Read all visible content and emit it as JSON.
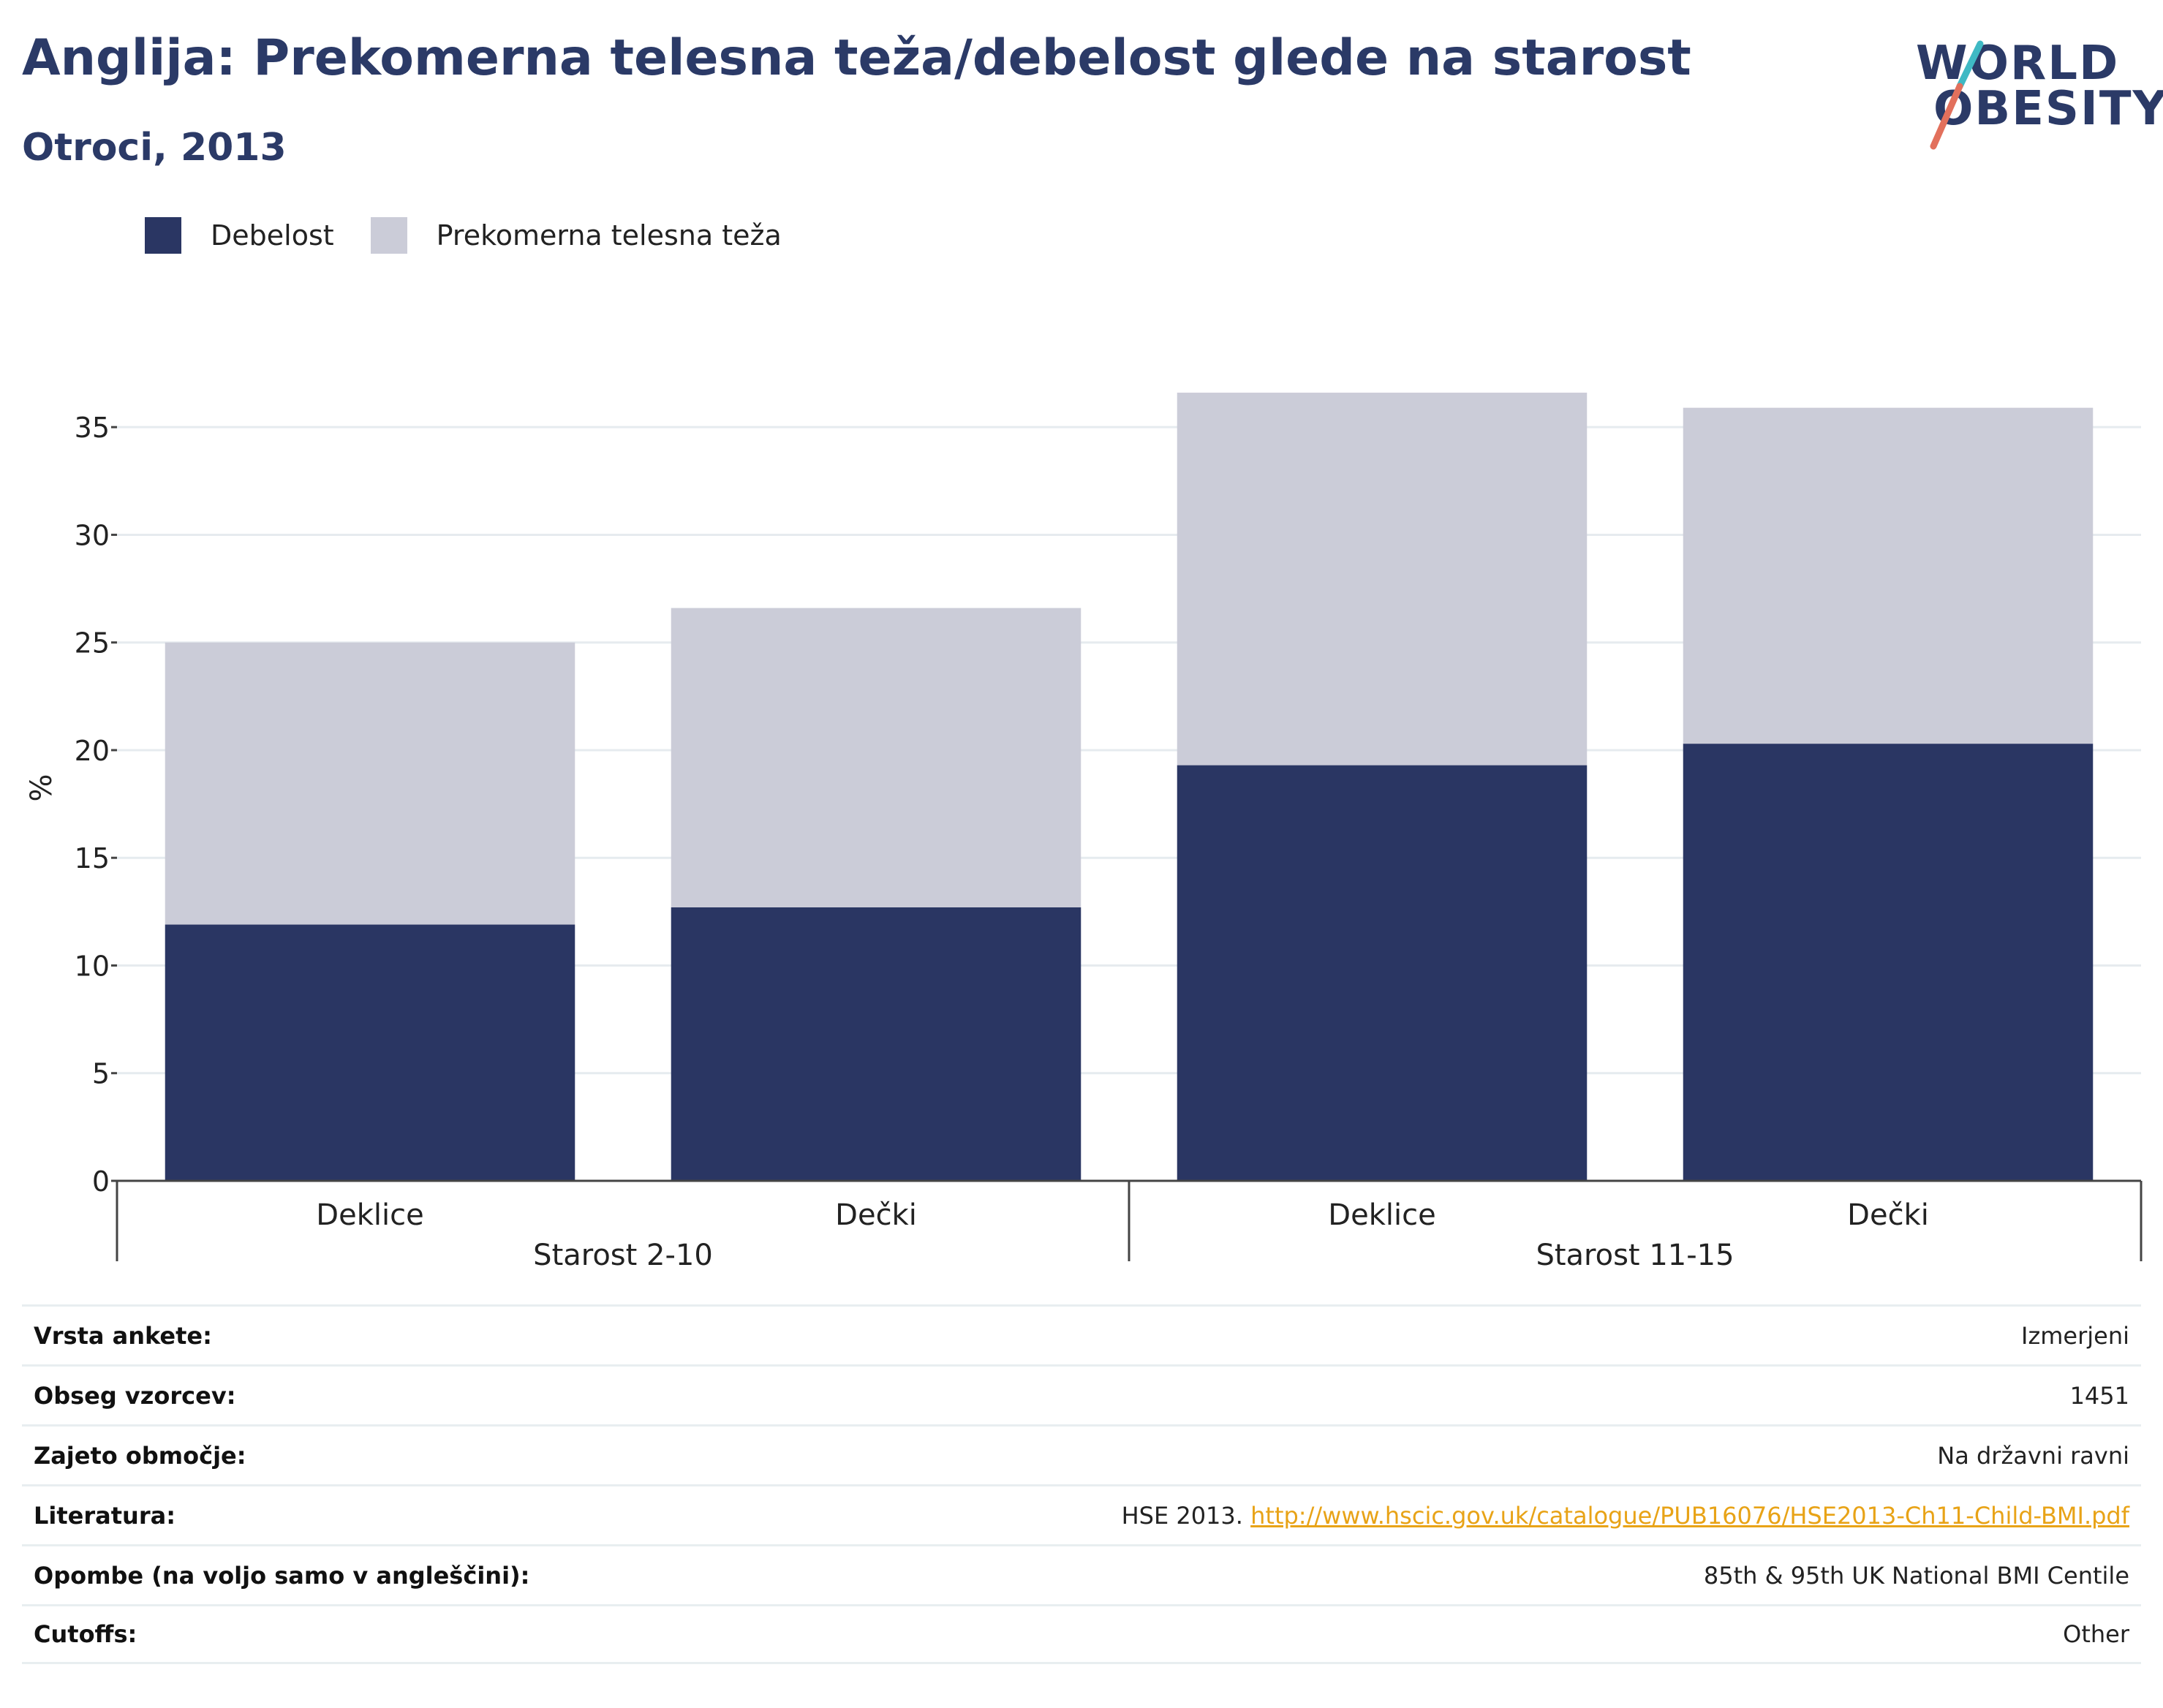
{
  "header": {
    "title": "Anglija: Prekomerna telesna teža/debelost glede na starost",
    "subtitle": "Otroci, 2013"
  },
  "logo": {
    "line1": "WORLD",
    "line2": "OBESITY"
  },
  "legend": {
    "items": [
      {
        "label": "Debelost",
        "color": "#2a3663"
      },
      {
        "label": "Prekomerna telesna teža",
        "color": "#cbccd8"
      }
    ]
  },
  "chart_data": {
    "type": "bar",
    "stacked": true,
    "categories": [
      "Deklice",
      "Dečki",
      "Deklice",
      "Dečki"
    ],
    "groups": [
      {
        "label": "Starost 2-10",
        "categories": [
          0,
          1
        ]
      },
      {
        "label": "Starost 11-15",
        "categories": [
          2,
          3
        ]
      }
    ],
    "series": [
      {
        "name": "Debelost",
        "color": "#2a3663",
        "values": [
          11.9,
          12.7,
          19.3,
          20.3
        ]
      },
      {
        "name": "Prekomerna telesna teža",
        "color": "#cbccd8",
        "values": [
          13.1,
          13.9,
          17.3,
          15.6
        ]
      }
    ],
    "ylabel": "%",
    "ylim": [
      0,
      36.5
    ],
    "yticks": [
      0,
      5,
      10,
      15,
      20,
      25,
      30,
      35
    ],
    "grid": true,
    "legend_position": "top-left"
  },
  "meta": {
    "rows": [
      {
        "key": "Vrsta ankete:",
        "value": "Izmerjeni"
      },
      {
        "key": "Obseg vzorcev:",
        "value": "1451"
      },
      {
        "key": "Zajeto območje:",
        "value": "Na državni ravni"
      },
      {
        "key": "Literatura:",
        "value_prefix": "HSE 2013. ",
        "link": "http://www.hscic.gov.uk/catalogue/PUB16076/HSE2013-Ch11-Child-BMI.pdf"
      },
      {
        "key": "Opombe (na voljo samo v angleščini):",
        "value": "85th & 95th UK National BMI Centile"
      },
      {
        "key": "Cutoffs:",
        "value": "Other"
      }
    ]
  }
}
